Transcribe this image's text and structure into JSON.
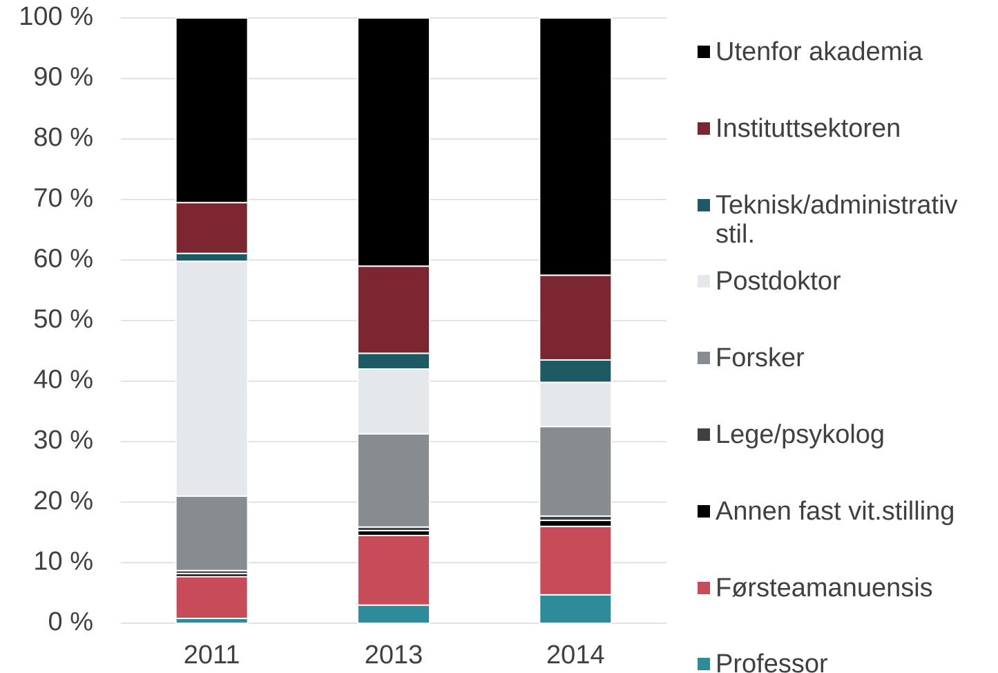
{
  "chart_data": {
    "type": "stacked_bar",
    "categories": [
      "2011",
      "2013",
      "2014"
    ],
    "series": [
      {
        "name": "Professor",
        "color": "#2e8b9a",
        "values": [
          0.8,
          3.0,
          4.7
        ]
      },
      {
        "name": "Førsteamanuensis",
        "color": "#c84b5a",
        "values": [
          6.9,
          11.5,
          11.3
        ]
      },
      {
        "name": "Annen fast vit.stilling",
        "color": "#000000",
        "values": [
          0.5,
          0.8,
          1.0
        ]
      },
      {
        "name": "Lege/psykolog",
        "color": "#404040",
        "values": [
          0.5,
          0.6,
          0.7
        ]
      },
      {
        "name": "Forsker",
        "color": "#878c90",
        "values": [
          12.3,
          15.4,
          14.8
        ]
      },
      {
        "name": "Postdoktor",
        "color": "#e5e8eb",
        "values": [
          38.8,
          10.7,
          7.3
        ]
      },
      {
        "name": "Teknisk/administrativ stil.",
        "color": "#1e5a64",
        "values": [
          1.3,
          2.6,
          3.7
        ]
      },
      {
        "name": "Instituttsektoren",
        "color": "#7b2630",
        "values": [
          8.4,
          14.4,
          14.0
        ]
      },
      {
        "name": "Utenfor akademia",
        "color": "#000000",
        "values": [
          30.5,
          41.0,
          42.5
        ]
      }
    ],
    "ylim": [
      0,
      100
    ],
    "yticks": [
      {
        "value": 0,
        "label": "0 %"
      },
      {
        "value": 10,
        "label": "10 %"
      },
      {
        "value": 20,
        "label": "20 %"
      },
      {
        "value": 30,
        "label": "30 %"
      },
      {
        "value": 40,
        "label": "40 %"
      },
      {
        "value": 50,
        "label": "50 %"
      },
      {
        "value": 60,
        "label": "60 %"
      },
      {
        "value": 70,
        "label": "70 %"
      },
      {
        "value": 80,
        "label": "80 %"
      },
      {
        "value": 90,
        "label": "90 %"
      },
      {
        "value": 100,
        "label": "100 %"
      }
    ],
    "grid": true,
    "legend": "right"
  }
}
